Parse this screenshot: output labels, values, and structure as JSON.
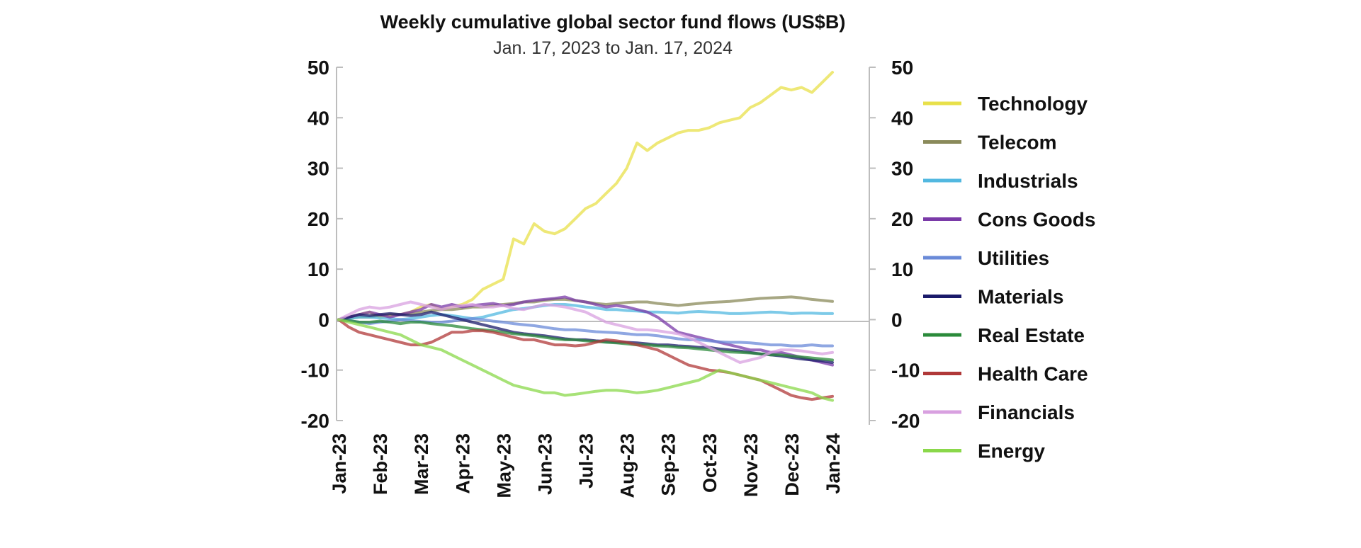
{
  "chart_data": {
    "type": "line",
    "title": "Weekly cumulative global sector fund flows (US$B)",
    "subtitle": "Jan. 17, 2023 to Jan. 17, 2024",
    "x_tick_labels": [
      "Jan-23",
      "Feb-23",
      "Mar-23",
      "Apr-23",
      "May-23",
      "Jun-23",
      "Jul-23",
      "Aug-23",
      "Sep-23",
      "Oct-23",
      "Nov-23",
      "Dec-23",
      "Jan-24"
    ],
    "y_tick_labels_left": [
      "50",
      "40",
      "30",
      "20",
      "10",
      "0",
      "-10",
      "-20"
    ],
    "y_tick_labels_right": [
      "50",
      "40",
      "30",
      "20",
      "10",
      "0",
      "-10",
      "-20"
    ],
    "ylim": [
      -20,
      50
    ],
    "y_ticks": [
      50,
      40,
      30,
      20,
      10,
      0,
      -10,
      -20
    ],
    "grid": false,
    "legend_position": "right",
    "series": [
      {
        "name": "Technology",
        "color": "#e8e04a",
        "values": [
          0,
          0.5,
          1,
          1.5,
          0.5,
          0.8,
          1,
          1.5,
          2.5,
          3,
          2,
          2.5,
          3,
          4,
          6,
          7,
          8,
          16,
          15,
          19,
          17.5,
          17,
          18,
          20,
          22,
          23,
          25,
          27,
          30,
          35,
          33.5,
          35,
          36,
          37,
          37.5,
          37.5,
          38,
          39,
          39.5,
          40,
          42,
          43,
          44.5,
          46,
          45.5,
          46,
          45,
          47,
          49
        ]
      },
      {
        "name": "Telecom",
        "color": "#8a8a5a",
        "values": [
          0,
          0.3,
          0.5,
          0.5,
          0.8,
          1,
          1,
          1.2,
          1.5,
          1.8,
          2,
          2,
          2.2,
          2.5,
          2.5,
          2.8,
          3,
          3.2,
          3.5,
          3.5,
          3.8,
          4,
          4,
          3.8,
          3.5,
          3.2,
          3,
          3.2,
          3.4,
          3.5,
          3.5,
          3.2,
          3,
          2.8,
          3,
          3.2,
          3.4,
          3.5,
          3.6,
          3.8,
          4,
          4.2,
          4.3,
          4.4,
          4.5,
          4.3,
          4,
          3.8,
          3.6
        ]
      },
      {
        "name": "Industrials",
        "color": "#52b8e0",
        "values": [
          0,
          0.2,
          0.5,
          0.5,
          0.3,
          0.2,
          0,
          0.2,
          0.5,
          0.8,
          1,
          0.8,
          0.5,
          0.2,
          0.5,
          1,
          1.5,
          2,
          2.2,
          2.5,
          2.8,
          3,
          3,
          2.8,
          2.5,
          2.3,
          2,
          2,
          1.8,
          1.7,
          1.5,
          1.5,
          1.4,
          1.3,
          1.5,
          1.6,
          1.5,
          1.4,
          1.2,
          1.2,
          1.3,
          1.4,
          1.5,
          1.4,
          1.2,
          1.3,
          1.3,
          1.2,
          1.2
        ]
      },
      {
        "name": "Cons Goods",
        "color": "#7a3aa8",
        "values": [
          0,
          0.5,
          1,
          1.5,
          1,
          0.5,
          1,
          1.5,
          2,
          3,
          2.5,
          3,
          2.5,
          2.8,
          3,
          3.2,
          2.8,
          3,
          3.5,
          3.8,
          4,
          4.2,
          4.5,
          3.8,
          3.5,
          3,
          2.5,
          2.8,
          2.5,
          2,
          1.5,
          0.5,
          -1,
          -2.5,
          -3,
          -3.5,
          -4,
          -4.5,
          -5,
          -5.5,
          -6,
          -6,
          -6.5,
          -6.5,
          -7,
          -7.5,
          -8,
          -8.5,
          -9
        ]
      },
      {
        "name": "Utilities",
        "color": "#6a8ad8",
        "values": [
          0,
          -0.2,
          -0.5,
          -0.8,
          -0.5,
          -0.3,
          0,
          -0.2,
          -0.4,
          -0.5,
          -0.5,
          -0.3,
          0,
          0.2,
          0,
          -0.3,
          -0.5,
          -0.8,
          -1,
          -1.2,
          -1.5,
          -1.8,
          -2,
          -2,
          -2.2,
          -2.4,
          -2.5,
          -2.6,
          -2.8,
          -3,
          -3,
          -3.2,
          -3.5,
          -3.8,
          -4,
          -4,
          -4.2,
          -4.4,
          -4.5,
          -4.5,
          -4.6,
          -4.8,
          -5,
          -5,
          -5.2,
          -5.2,
          -5,
          -5.2,
          -5.2
        ]
      },
      {
        "name": "Materials",
        "color": "#1a1a6a",
        "values": [
          0,
          0.5,
          1,
          0.8,
          1,
          1.2,
          1,
          0.8,
          1,
          1.5,
          1,
          0.5,
          0,
          -0.5,
          -1,
          -1.5,
          -2,
          -2.5,
          -2.8,
          -3,
          -3.2,
          -3.5,
          -3.8,
          -4,
          -4,
          -4.2,
          -4.3,
          -4.5,
          -4.5,
          -4.6,
          -4.8,
          -5,
          -5,
          -5.2,
          -5.3,
          -5.5,
          -5.5,
          -5.8,
          -6,
          -6.2,
          -6.5,
          -6.8,
          -7,
          -7.2,
          -7.5,
          -7.8,
          -8,
          -8.2,
          -8.5
        ]
      },
      {
        "name": "Real Estate",
        "color": "#2a8a3a",
        "values": [
          0,
          -0.2,
          -0.5,
          -0.5,
          -0.3,
          -0.5,
          -0.8,
          -0.5,
          -0.5,
          -0.8,
          -1,
          -1.2,
          -1.5,
          -1.8,
          -2,
          -2.2,
          -2.5,
          -2.8,
          -3,
          -3.2,
          -3.5,
          -3.8,
          -4,
          -4,
          -4.2,
          -4.3,
          -4.5,
          -4.6,
          -4.8,
          -5,
          -5,
          -5.2,
          -5.3,
          -5.5,
          -5.6,
          -5.8,
          -6,
          -6.2,
          -6.4,
          -6.5,
          -6.6,
          -6.8,
          -7,
          -7,
          -7.2,
          -7.4,
          -7.6,
          -7.8,
          -8
        ]
      },
      {
        "name": "Health Care",
        "color": "#b03838",
        "values": [
          0,
          -1.5,
          -2.5,
          -3,
          -3.5,
          -4,
          -4.5,
          -5,
          -5,
          -4.5,
          -3.5,
          -2.5,
          -2.5,
          -2.2,
          -2.2,
          -2.5,
          -3,
          -3.5,
          -4,
          -4,
          -4.5,
          -5,
          -5,
          -5.2,
          -5,
          -4.5,
          -4,
          -4.2,
          -4.5,
          -5,
          -5.5,
          -6,
          -7,
          -8,
          -9,
          -9.5,
          -10,
          -10.2,
          -10.5,
          -11,
          -11.5,
          -12,
          -13,
          -14,
          -15,
          -15.5,
          -15.8,
          -15.5,
          -15.2
        ]
      },
      {
        "name": "Financials",
        "color": "#d8a0e0",
        "values": [
          0,
          1,
          2,
          2.5,
          2.2,
          2.5,
          3,
          3.5,
          3,
          2.5,
          2,
          2.5,
          2.8,
          3,
          2.5,
          2.5,
          2.8,
          2.2,
          2,
          2.5,
          3,
          2.8,
          2.5,
          2,
          1.5,
          0.5,
          -0.5,
          -1,
          -1.5,
          -2,
          -2,
          -2.2,
          -2.5,
          -2.8,
          -3.5,
          -4.5,
          -5.5,
          -6.5,
          -7.5,
          -8.5,
          -8,
          -7.5,
          -6.5,
          -6,
          -6,
          -6.2,
          -6.5,
          -6.8,
          -6.5
        ]
      },
      {
        "name": "Energy",
        "color": "#8ad84a",
        "values": [
          0,
          -0.5,
          -1,
          -1.5,
          -2,
          -2.5,
          -3,
          -4,
          -5,
          -5.5,
          -6,
          -7,
          -8,
          -9,
          -10,
          -11,
          -12,
          -13,
          -13.5,
          -14,
          -14.5,
          -14.5,
          -15,
          -14.8,
          -14.5,
          -14.2,
          -14,
          -14,
          -14.2,
          -14.5,
          -14.3,
          -14,
          -13.5,
          -13,
          -12.5,
          -12,
          -11,
          -10,
          -10.5,
          -11,
          -11.5,
          -12,
          -12.5,
          -13,
          -13.5,
          -14,
          -14.5,
          -15.5,
          -16
        ]
      }
    ]
  }
}
